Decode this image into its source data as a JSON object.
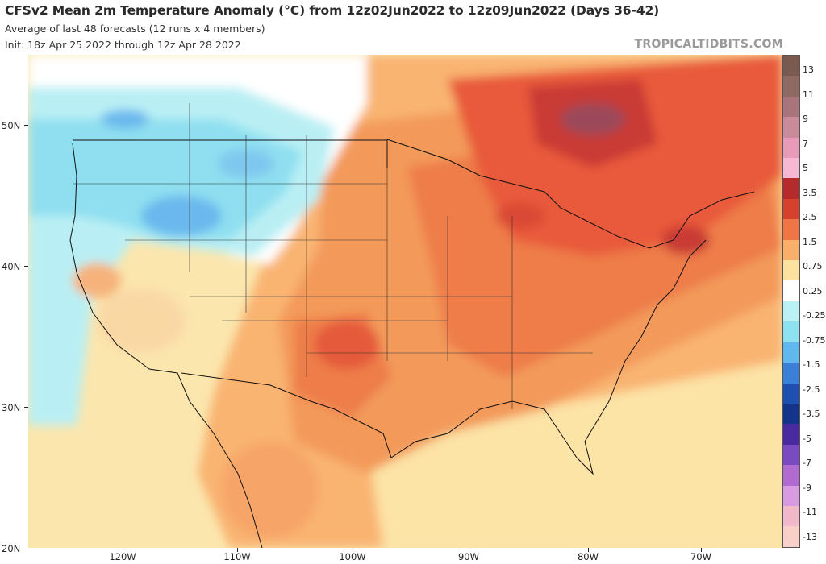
{
  "header": {
    "title": "CFSv2 Mean 2m Temperature Anomaly (°C) from 12z02Jun2022 to 12z09Jun2022 (Days 36-42)",
    "subtitle_1": "Average of last 48 forecasts (12 runs x 4 members)",
    "subtitle_2": "Init: 18z Apr 25 2022 through 12z Apr 28 2022",
    "brand": "TROPICALTIDBITS.COM"
  },
  "axes": {
    "latitude_labels": [
      "50N",
      "40N",
      "30N",
      "20N"
    ],
    "longitude_labels": [
      "120W",
      "110W",
      "100W",
      "90W",
      "80W",
      "70W"
    ]
  },
  "colorbar": {
    "labels": [
      "13",
      "11",
      "9",
      "7",
      "5",
      "3.5",
      "2.5",
      "1.5",
      "0.75",
      "0.25",
      "-0.25",
      "-0.75",
      "-1.5",
      "-2.5",
      "-3.5",
      "-5",
      "-7",
      "-9",
      "-11",
      "-13"
    ],
    "colors": [
      "#7a5a4e",
      "#8f6a62",
      "#a9747c",
      "#c98a9a",
      "#e89ab9",
      "#f7b8d4",
      "#b52a2a",
      "#d6402d",
      "#f07545",
      "#f9ae6a",
      "#fce19f",
      "#ffffff",
      "#b9f1f4",
      "#8de2f1",
      "#5fb9ef",
      "#3a7fd8",
      "#1f4fb0",
      "#13348a",
      "#4a2aa0",
      "#7a4ac0",
      "#b06ad0",
      "#d89ae0",
      "#f0b8c8",
      "#f8d0c8"
    ]
  }
}
